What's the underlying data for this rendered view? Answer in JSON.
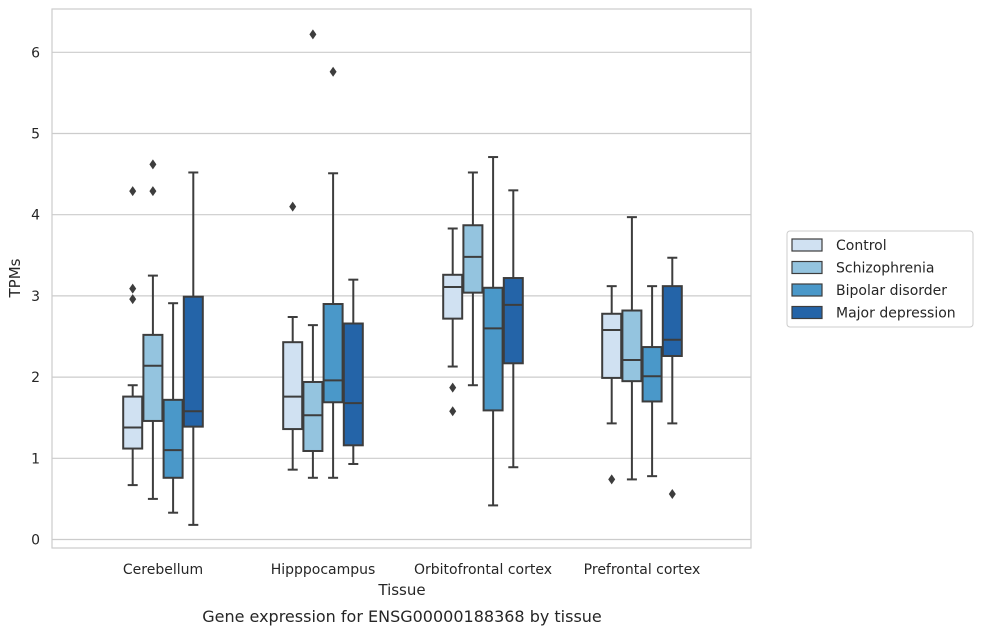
{
  "chart_data": {
    "type": "box",
    "title": "",
    "caption": "Gene expression for ENSG00000188368 by tissue",
    "xlabel": "Tissue",
    "ylabel": "TPMs",
    "ylim": [
      -0.1,
      6.55
    ],
    "yticks": [
      0,
      1,
      2,
      3,
      4,
      5,
      6
    ],
    "grid": true,
    "legend_position": "right",
    "categories": [
      "Cerebellum",
      "Hipppocampus",
      "Orbitofrontal cortex",
      "Prefrontal cortex"
    ],
    "series": [
      {
        "name": "Control",
        "color": "#d0e1f2",
        "boxes": [
          {
            "whislo": 0.67,
            "q1": 1.12,
            "med": 1.38,
            "q3": 1.76,
            "whishi": 1.9,
            "fliers": [
              2.96,
              3.09,
              4.29
            ]
          },
          {
            "whislo": 0.86,
            "q1": 1.36,
            "med": 1.76,
            "q3": 2.43,
            "whishi": 2.74,
            "fliers": [
              4.1
            ]
          },
          {
            "whislo": 2.13,
            "q1": 2.72,
            "med": 3.11,
            "q3": 3.26,
            "whishi": 3.83,
            "fliers": [
              1.58,
              1.87
            ]
          },
          {
            "whislo": 1.43,
            "q1": 1.99,
            "med": 2.58,
            "q3": 2.78,
            "whishi": 3.12,
            "fliers": [
              0.74
            ]
          }
        ]
      },
      {
        "name": "Schizophrenia",
        "color": "#94c4df",
        "boxes": [
          {
            "whislo": 0.5,
            "q1": 1.46,
            "med": 2.14,
            "q3": 2.52,
            "whishi": 3.25,
            "fliers": [
              4.29,
              4.62
            ]
          },
          {
            "whislo": 0.76,
            "q1": 1.09,
            "med": 1.53,
            "q3": 1.94,
            "whishi": 2.64,
            "fliers": [
              6.22
            ]
          },
          {
            "whislo": 1.9,
            "q1": 3.04,
            "med": 3.48,
            "q3": 3.87,
            "whishi": 4.52,
            "fliers": []
          },
          {
            "whislo": 0.74,
            "q1": 1.95,
            "med": 2.21,
            "q3": 2.82,
            "whishi": 3.97,
            "fliers": []
          }
        ]
      },
      {
        "name": "Bipolar disorder",
        "color": "#4a98c9",
        "boxes": [
          {
            "whislo": 0.33,
            "q1": 0.76,
            "med": 1.1,
            "q3": 1.72,
            "whishi": 2.91,
            "fliers": []
          },
          {
            "whislo": 0.76,
            "q1": 1.69,
            "med": 1.96,
            "q3": 2.9,
            "whishi": 4.51,
            "fliers": [
              5.76
            ]
          },
          {
            "whislo": 0.42,
            "q1": 1.59,
            "med": 2.6,
            "q3": 3.1,
            "whishi": 4.71,
            "fliers": []
          },
          {
            "whislo": 0.78,
            "q1": 1.7,
            "med": 2.01,
            "q3": 2.37,
            "whishi": 3.12,
            "fliers": []
          }
        ]
      },
      {
        "name": "Major depression",
        "color": "#2464a8",
        "boxes": [
          {
            "whislo": 0.18,
            "q1": 1.39,
            "med": 1.58,
            "q3": 2.99,
            "whishi": 4.52,
            "fliers": []
          },
          {
            "whislo": 0.93,
            "q1": 1.16,
            "med": 1.68,
            "q3": 2.66,
            "whishi": 3.2,
            "fliers": []
          },
          {
            "whislo": 0.89,
            "q1": 2.17,
            "med": 2.89,
            "q3": 3.22,
            "whishi": 4.3,
            "fliers": []
          },
          {
            "whislo": 1.43,
            "q1": 2.26,
            "med": 2.46,
            "q3": 3.12,
            "whishi": 3.47,
            "fliers": [
              0.56
            ]
          }
        ]
      }
    ]
  },
  "colors": {
    "grid": "#cccccc",
    "frame": "#cccccc",
    "box_edge": "#3d3d3d"
  }
}
